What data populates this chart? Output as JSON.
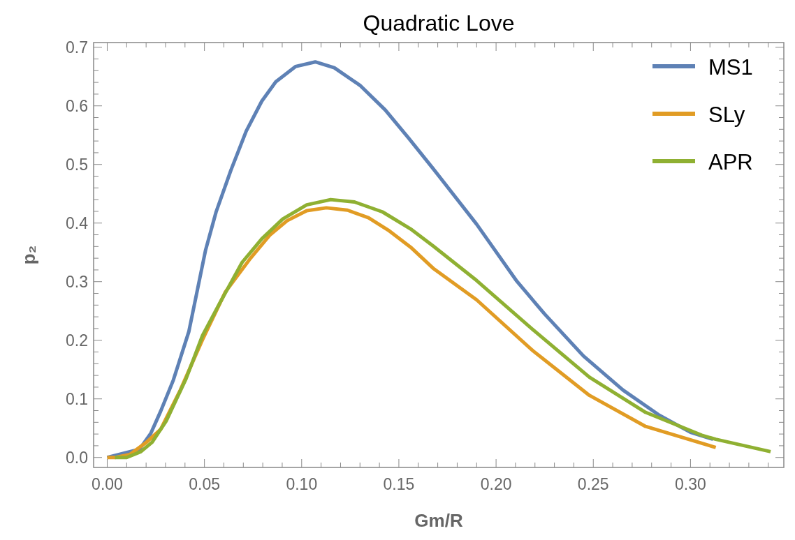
{
  "chart_data": {
    "type": "line",
    "title": "Quadratic Love",
    "xlabel": "Gm/R",
    "ylabel": "p₂",
    "xlim": [
      -0.007,
      0.348
    ],
    "ylim": [
      -0.017,
      0.708
    ],
    "xticks": [
      {
        "value": 0,
        "label": "0.00"
      },
      {
        "value": 0.01,
        "label": null
      },
      {
        "value": 0.02,
        "label": null
      },
      {
        "value": 0.03,
        "label": null
      },
      {
        "value": 0.04,
        "label": null
      },
      {
        "value": 0.05,
        "label": "0.05"
      },
      {
        "value": 0.06,
        "label": null
      },
      {
        "value": 0.07,
        "label": null
      },
      {
        "value": 0.08,
        "label": null
      },
      {
        "value": 0.09,
        "label": null
      },
      {
        "value": 0.1,
        "label": "0.10"
      },
      {
        "value": 0.11,
        "label": null
      },
      {
        "value": 0.12,
        "label": null
      },
      {
        "value": 0.13,
        "label": null
      },
      {
        "value": 0.14,
        "label": null
      },
      {
        "value": 0.15,
        "label": "0.15"
      },
      {
        "value": 0.16,
        "label": null
      },
      {
        "value": 0.17,
        "label": null
      },
      {
        "value": 0.18,
        "label": null
      },
      {
        "value": 0.19,
        "label": null
      },
      {
        "value": 0.2,
        "label": "0.20"
      },
      {
        "value": 0.21,
        "label": null
      },
      {
        "value": 0.22,
        "label": null
      },
      {
        "value": 0.23,
        "label": null
      },
      {
        "value": 0.24,
        "label": null
      },
      {
        "value": 0.25,
        "label": "0.25"
      },
      {
        "value": 0.26,
        "label": null
      },
      {
        "value": 0.27,
        "label": null
      },
      {
        "value": 0.28,
        "label": null
      },
      {
        "value": 0.29,
        "label": null
      },
      {
        "value": 0.3,
        "label": "0.30"
      },
      {
        "value": 0.31,
        "label": null
      },
      {
        "value": 0.32,
        "label": null
      },
      {
        "value": 0.33,
        "label": null
      },
      {
        "value": 0.34,
        "label": null
      }
    ],
    "yticks": [
      {
        "value": 0,
        "label": "0.0"
      },
      {
        "value": 0.02,
        "label": null
      },
      {
        "value": 0.04,
        "label": null
      },
      {
        "value": 0.06,
        "label": null
      },
      {
        "value": 0.08,
        "label": null
      },
      {
        "value": 0.1,
        "label": "0.1"
      },
      {
        "value": 0.12,
        "label": null
      },
      {
        "value": 0.14,
        "label": null
      },
      {
        "value": 0.16,
        "label": null
      },
      {
        "value": 0.18,
        "label": null
      },
      {
        "value": 0.2,
        "label": "0.2"
      },
      {
        "value": 0.22,
        "label": null
      },
      {
        "value": 0.24,
        "label": null
      },
      {
        "value": 0.26,
        "label": null
      },
      {
        "value": 0.28,
        "label": null
      },
      {
        "value": 0.3,
        "label": "0.3"
      },
      {
        "value": 0.32,
        "label": null
      },
      {
        "value": 0.34,
        "label": null
      },
      {
        "value": 0.36,
        "label": null
      },
      {
        "value": 0.38,
        "label": null
      },
      {
        "value": 0.4,
        "label": "0.4"
      },
      {
        "value": 0.42,
        "label": null
      },
      {
        "value": 0.44,
        "label": null
      },
      {
        "value": 0.46,
        "label": null
      },
      {
        "value": 0.48,
        "label": null
      },
      {
        "value": 0.5,
        "label": "0.5"
      },
      {
        "value": 0.52,
        "label": null
      },
      {
        "value": 0.54,
        "label": null
      },
      {
        "value": 0.56,
        "label": null
      },
      {
        "value": 0.58,
        "label": null
      },
      {
        "value": 0.6,
        "label": "0.6"
      },
      {
        "value": 0.62,
        "label": null
      },
      {
        "value": 0.64,
        "label": null
      },
      {
        "value": 0.66,
        "label": null
      },
      {
        "value": 0.68,
        "label": null
      },
      {
        "value": 0.7,
        "label": "0.7"
      }
    ],
    "legend": "top right",
    "grid": false,
    "marker": "none",
    "line_style": "solid",
    "series": [
      {
        "name": "MS1",
        "color": "#5e81b5",
        "x": [
          0,
          0.0166,
          0.0224,
          0.0275,
          0.034,
          0.042,
          0.0506,
          0.056,
          0.0636,
          0.0715,
          0.0795,
          0.0867,
          0.0968,
          0.107,
          0.1168,
          0.13,
          0.143,
          0.155,
          0.1676,
          0.19,
          0.2104,
          0.2249,
          0.245,
          0.2653,
          0.284,
          0.3,
          0.3116
        ],
        "values": [
          0,
          0.014,
          0.041,
          0.079,
          0.132,
          0.215,
          0.354,
          0.419,
          0.49,
          0.557,
          0.608,
          0.641,
          0.667,
          0.675,
          0.665,
          0.635,
          0.593,
          0.545,
          0.493,
          0.398,
          0.302,
          0.245,
          0.173,
          0.115,
          0.072,
          0.043,
          0.031
        ]
      },
      {
        "name": "SLy",
        "color": "#e19c24",
        "x": [
          0,
          0.004,
          0.0116,
          0.0202,
          0.0275,
          0.0376,
          0.049,
          0.0607,
          0.0737,
          0.0838,
          0.0925,
          0.1026,
          0.1127,
          0.1236,
          0.1344,
          0.1445,
          0.156,
          0.1676,
          0.19,
          0.219,
          0.248,
          0.2769,
          0.313
        ],
        "values": [
          0,
          0,
          0.005,
          0.026,
          0.048,
          0.115,
          0.201,
          0.282,
          0.34,
          0.38,
          0.404,
          0.421,
          0.426,
          0.422,
          0.409,
          0.388,
          0.359,
          0.323,
          0.269,
          0.182,
          0.106,
          0.053,
          0.017
        ]
      },
      {
        "name": "APR",
        "color": "#8fb032",
        "x": [
          0.004,
          0.01,
          0.0173,
          0.0231,
          0.0303,
          0.0405,
          0.049,
          0.0578,
          0.0694,
          0.0795,
          0.0903,
          0.1026,
          0.1149,
          0.1272,
          0.1416,
          0.156,
          0.1676,
          0.19,
          0.219,
          0.248,
          0.2769,
          0.3058,
          0.313,
          0.3412
        ],
        "values": [
          0,
          0,
          0.01,
          0.026,
          0.062,
          0.134,
          0.208,
          0.263,
          0.333,
          0.373,
          0.407,
          0.431,
          0.44,
          0.436,
          0.419,
          0.39,
          0.361,
          0.302,
          0.218,
          0.137,
          0.077,
          0.038,
          0.031,
          0.01
        ]
      }
    ]
  }
}
